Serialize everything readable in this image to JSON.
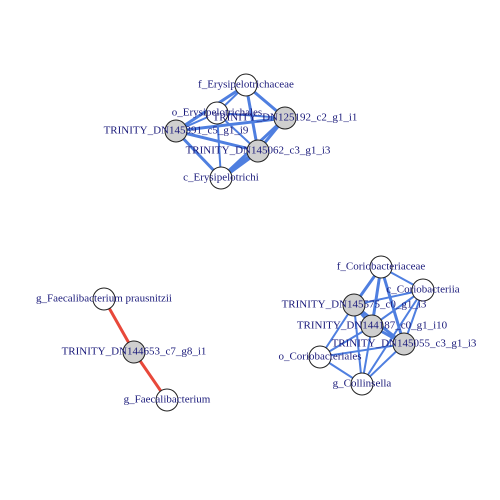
{
  "network": {
    "colors": {
      "positive_edge": "#4f7fe0",
      "negative_edge": "#e8483a",
      "otu_node": "#cfcfcf",
      "taxon_node": "#ffffff",
      "label": "#1a1a7a"
    },
    "nodes": [
      {
        "id": "f_Erysipelotrichaceae",
        "label": "f_Erysipelotrichaceae",
        "kind": "taxon"
      },
      {
        "id": "o_Erysipelotrichales",
        "label": "o_Erysipelotrichales",
        "kind": "taxon"
      },
      {
        "id": "TRINITY_DN125192_c2_g1_i1",
        "label": "TRINITY_DN125192_c2_g1_i1",
        "kind": "otu"
      },
      {
        "id": "TRINITY_DN145391_c5_g1_i9",
        "label": "TRINITY_DN145391_c5_g1_i9",
        "kind": "otu"
      },
      {
        "id": "TRINITY_DN145062_c3_g1_i3",
        "label": "TRINITY_DN145062_c3_g1_i3",
        "kind": "otu"
      },
      {
        "id": "c_Erysipelotrichi",
        "label": "c_Erysipelotrichi",
        "kind": "taxon"
      },
      {
        "id": "g_Faecalibacterium prausnitzii",
        "label": "g_Faecalibacterium prausnitzii",
        "kind": "taxon"
      },
      {
        "id": "TRINITY_DN144653_c7_g8_i1",
        "label": "TRINITY_DN144653_c7_g8_i1",
        "kind": "otu"
      },
      {
        "id": "g_Faecalibacterium",
        "label": "g_Faecalibacterium",
        "kind": "taxon"
      },
      {
        "id": "f_Coriobacteriaceae",
        "label": "f_Coriobacteriaceae",
        "kind": "taxon"
      },
      {
        "id": "c_Coriobacteriia",
        "label": "c_Coriobacteriia",
        "kind": "taxon"
      },
      {
        "id": "TRINITY_DN145575_c0_g1_i3",
        "label": "TRINITY_DN145575_c0_g1_i3",
        "kind": "otu"
      },
      {
        "id": "TRINITY_DN144187_c0_g1_i10",
        "label": "TRINITY_DN144187_c0_g1_i10",
        "kind": "otu"
      },
      {
        "id": "TRINITY_DN145055_c3_g1_i3",
        "label": "TRINITY_DN145055_c3_g1_i3",
        "kind": "otu"
      },
      {
        "id": "o_Coriobacteriales",
        "label": "o_Coriobacteriales",
        "kind": "taxon"
      },
      {
        "id": "g_Collinsella",
        "label": "g_Collinsella",
        "kind": "taxon"
      }
    ],
    "edges": [
      {
        "source": "f_Erysipelotrichaceae",
        "target": "o_Erysipelotrichales",
        "sign": "positive",
        "weight": 2
      },
      {
        "source": "f_Erysipelotrichaceae",
        "target": "TRINITY_DN125192_c2_g1_i1",
        "sign": "positive",
        "weight": 3
      },
      {
        "source": "f_Erysipelotrichaceae",
        "target": "TRINITY_DN145391_c5_g1_i9",
        "sign": "positive",
        "weight": 3
      },
      {
        "source": "f_Erysipelotrichaceae",
        "target": "TRINITY_DN145062_c3_g1_i3",
        "sign": "positive",
        "weight": 3
      },
      {
        "source": "o_Erysipelotrichales",
        "target": "TRINITY_DN125192_c2_g1_i1",
        "sign": "positive",
        "weight": 2
      },
      {
        "source": "o_Erysipelotrichales",
        "target": "TRINITY_DN145391_c5_g1_i9",
        "sign": "positive",
        "weight": 2
      },
      {
        "source": "o_Erysipelotrichales",
        "target": "TRINITY_DN145062_c3_g1_i3",
        "sign": "positive",
        "weight": 2
      },
      {
        "source": "TRINITY_DN145391_c5_g1_i9",
        "target": "TRINITY_DN125192_c2_g1_i1",
        "sign": "positive",
        "weight": 3
      },
      {
        "source": "TRINITY_DN145391_c5_g1_i9",
        "target": "TRINITY_DN145062_c3_g1_i3",
        "sign": "positive",
        "weight": 3
      },
      {
        "source": "TRINITY_DN125192_c2_g1_i1",
        "target": "TRINITY_DN145062_c3_g1_i3",
        "sign": "positive",
        "weight": 3
      },
      {
        "source": "TRINITY_DN145391_c5_g1_i9",
        "target": "c_Erysipelotrichi",
        "sign": "positive",
        "weight": 3
      },
      {
        "source": "TRINITY_DN125192_c2_g1_i1",
        "target": "c_Erysipelotrichi",
        "sign": "positive",
        "weight": 3
      },
      {
        "source": "TRINITY_DN145062_c3_g1_i3",
        "target": "c_Erysipelotrichi",
        "sign": "positive",
        "weight": 5
      },
      {
        "source": "o_Erysipelotrichales",
        "target": "c_Erysipelotrichi",
        "sign": "positive",
        "weight": 2
      },
      {
        "source": "g_Faecalibacterium prausnitzii",
        "target": "TRINITY_DN144653_c7_g8_i1",
        "sign": "negative",
        "weight": 3
      },
      {
        "source": "TRINITY_DN144653_c7_g8_i1",
        "target": "g_Faecalibacterium",
        "sign": "negative",
        "weight": 3
      },
      {
        "source": "f_Coriobacteriaceae",
        "target": "TRINITY_DN145575_c0_g1_i3",
        "sign": "positive",
        "weight": 3
      },
      {
        "source": "f_Coriobacteriaceae",
        "target": "TRINITY_DN144187_c0_g1_i10",
        "sign": "positive",
        "weight": 3
      },
      {
        "source": "f_Coriobacteriaceae",
        "target": "TRINITY_DN145055_c3_g1_i3",
        "sign": "positive",
        "weight": 3
      },
      {
        "source": "f_Coriobacteriaceae",
        "target": "c_Coriobacteriia",
        "sign": "positive",
        "weight": 2
      },
      {
        "source": "c_Coriobacteriia",
        "target": "TRINITY_DN145575_c0_g1_i3",
        "sign": "positive",
        "weight": 2
      },
      {
        "source": "c_Coriobacteriia",
        "target": "TRINITY_DN144187_c0_g1_i10",
        "sign": "positive",
        "weight": 2
      },
      {
        "source": "c_Coriobacteriia",
        "target": "TRINITY_DN145055_c3_g1_i3",
        "sign": "positive",
        "weight": 2
      },
      {
        "source": "TRINITY_DN145575_c0_g1_i3",
        "target": "TRINITY_DN144187_c0_g1_i10",
        "sign": "positive",
        "weight": 3
      },
      {
        "source": "TRINITY_DN145575_c0_g1_i3",
        "target": "TRINITY_DN145055_c3_g1_i3",
        "sign": "positive",
        "weight": 3
      },
      {
        "source": "TRINITY_DN144187_c0_g1_i10",
        "target": "TRINITY_DN145055_c3_g1_i3",
        "sign": "positive",
        "weight": 3
      },
      {
        "source": "o_Coriobacteriales",
        "target": "TRINITY_DN145575_c0_g1_i3",
        "sign": "positive",
        "weight": 2
      },
      {
        "source": "o_Coriobacteriales",
        "target": "TRINITY_DN144187_c0_g1_i10",
        "sign": "positive",
        "weight": 2
      },
      {
        "source": "o_Coriobacteriales",
        "target": "TRINITY_DN145055_c3_g1_i3",
        "sign": "positive",
        "weight": 2
      },
      {
        "source": "g_Collinsella",
        "target": "TRINITY_DN145575_c0_g1_i3",
        "sign": "positive",
        "weight": 2
      },
      {
        "source": "g_Collinsella",
        "target": "TRINITY_DN144187_c0_g1_i10",
        "sign": "positive",
        "weight": 2
      },
      {
        "source": "g_Collinsella",
        "target": "TRINITY_DN145055_c3_g1_i3",
        "sign": "positive",
        "weight": 2
      },
      {
        "source": "g_Collinsella",
        "target": "o_Coriobacteriales",
        "sign": "positive",
        "weight": 2
      },
      {
        "source": "g_Collinsella",
        "target": "c_Coriobacteriia",
        "sign": "positive",
        "weight": 2
      }
    ]
  }
}
